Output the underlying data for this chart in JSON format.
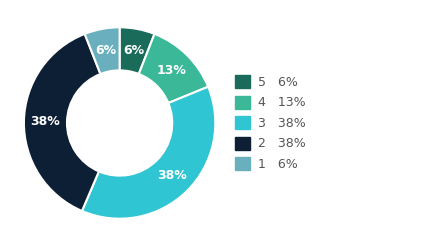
{
  "labels": [
    "5",
    "4",
    "3",
    "2",
    "1"
  ],
  "values": [
    6,
    13,
    38,
    38,
    6
  ],
  "colors": [
    "#1a6b5a",
    "#3ab898",
    "#30c5d2",
    "#0d1f35",
    "#6aafbe"
  ],
  "legend_labels": [
    "5   6%",
    "4   13%",
    "3   38%",
    "2   38%",
    "1   6%"
  ],
  "pct_labels": [
    "6%",
    "13%",
    "38%",
    "38%",
    "6%"
  ],
  "background_color": "#ffffff",
  "text_color": "#ffffff",
  "font_size": 9,
  "legend_font_size": 9
}
